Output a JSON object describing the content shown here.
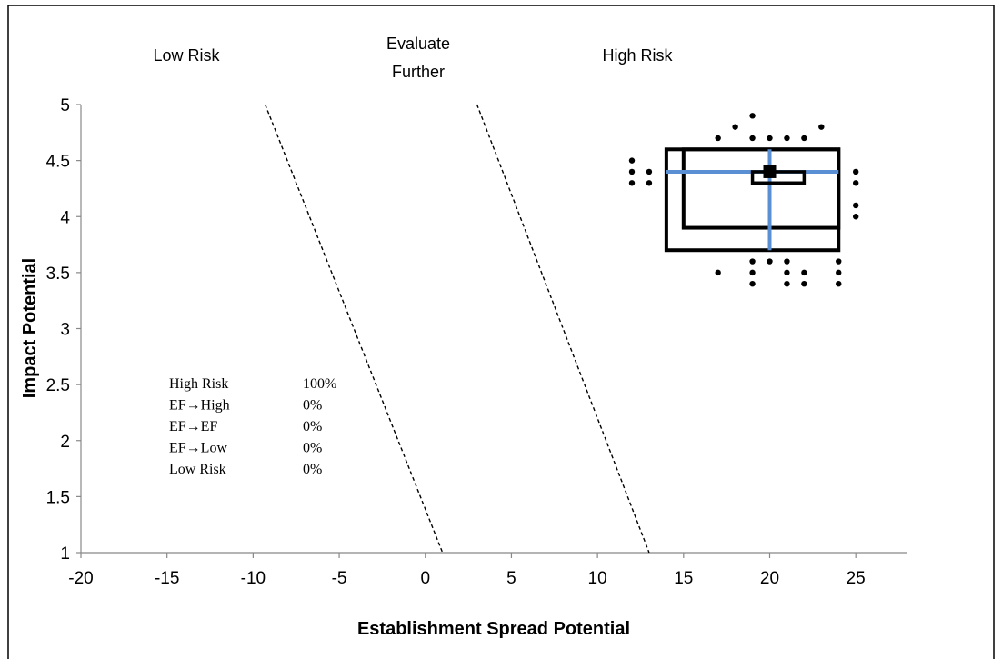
{
  "chart_data": {
    "type": "scatter",
    "title": "",
    "xlabel": "Establishment Spread Potential",
    "ylabel": "Impact Potential",
    "xlim": [
      -20,
      28
    ],
    "ylim": [
      1,
      5
    ],
    "xticks": [
      -20,
      -15,
      -10,
      -5,
      0,
      5,
      10,
      15,
      20,
      25
    ],
    "yticks": [
      1,
      1.5,
      2,
      2.5,
      3,
      3.5,
      4,
      4.5,
      5
    ],
    "grid": false,
    "region_labels": [
      {
        "id": "low",
        "lines": [
          "Low Risk"
        ]
      },
      {
        "id": "ef",
        "lines": [
          "Evaluate",
          "Further"
        ]
      },
      {
        "id": "high",
        "lines": [
          "High Risk"
        ]
      }
    ],
    "threshold_lines": [
      {
        "from": [
          -9.3,
          5
        ],
        "to": [
          1,
          1
        ]
      },
      {
        "from": [
          3,
          5
        ],
        "to": [
          13,
          1
        ]
      }
    ],
    "summary_table": [
      {
        "label": "High Risk",
        "value": "100%"
      },
      {
        "label": "EF→High",
        "value": "0%"
      },
      {
        "label": "EF→EF",
        "value": "0%"
      },
      {
        "label": "EF→Low",
        "value": "0%"
      },
      {
        "label": "Low Risk",
        "value": "0%"
      }
    ],
    "median": [
      20,
      4.4
    ],
    "median_bar": {
      "x": [
        19,
        22
      ],
      "y": [
        4.3,
        4.4
      ]
    },
    "box_outer": {
      "x": [
        14,
        24
      ],
      "y": [
        3.7,
        4.6
      ]
    },
    "box_inner": {
      "x": [
        15,
        24
      ],
      "y": [
        3.9,
        4.6
      ]
    },
    "whisker_h": {
      "x": [
        14,
        24
      ],
      "y": 4.4
    },
    "whisker_v": {
      "x": 20,
      "y": [
        3.7,
        4.6
      ]
    },
    "outliers": [
      [
        19,
        4.9
      ],
      [
        18,
        4.8
      ],
      [
        23,
        4.8
      ],
      [
        17,
        4.7
      ],
      [
        19,
        4.7
      ],
      [
        20,
        4.7
      ],
      [
        21,
        4.7
      ],
      [
        22,
        4.7
      ],
      [
        12,
        4.5
      ],
      [
        12,
        4.4
      ],
      [
        13,
        4.4
      ],
      [
        12,
        4.3
      ],
      [
        13,
        4.3
      ],
      [
        25,
        4.4
      ],
      [
        25,
        4.3
      ],
      [
        25,
        4.1
      ],
      [
        25,
        4.0
      ],
      [
        19,
        3.6
      ],
      [
        20,
        3.6
      ],
      [
        21,
        3.6
      ],
      [
        24,
        3.6
      ],
      [
        17,
        3.5
      ],
      [
        19,
        3.5
      ],
      [
        21,
        3.5
      ],
      [
        22,
        3.5
      ],
      [
        24,
        3.5
      ],
      [
        19,
        3.4
      ],
      [
        21,
        3.4
      ],
      [
        22,
        3.4
      ],
      [
        24,
        3.4
      ]
    ],
    "colors": {
      "whisker": "#5b8fd4",
      "box": "#000000",
      "points": "#000000"
    }
  }
}
